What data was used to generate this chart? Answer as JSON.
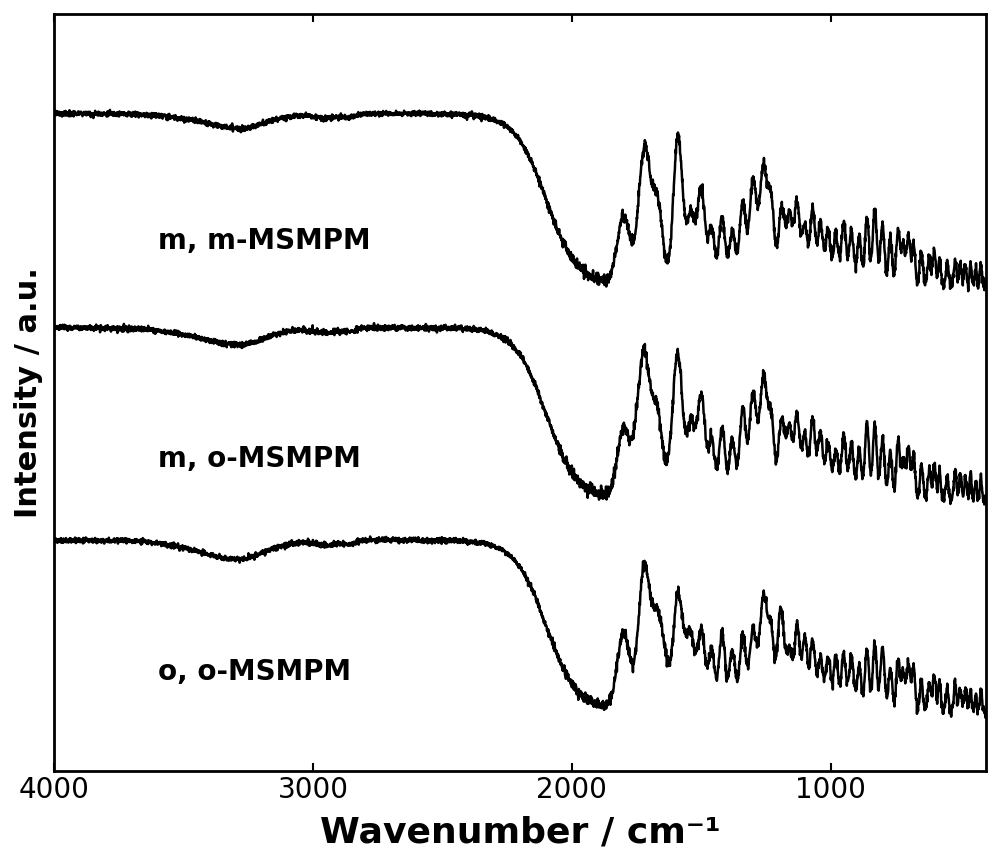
{
  "xlabel": "Wavenumber / cm⁻¹",
  "ylabel": "Intensity / a.u.",
  "xlim": [
    4000,
    400
  ],
  "labels": [
    "m, m-MSMPM",
    "m, o-MSMPM",
    "o, o-MSMPM"
  ],
  "offsets": [
    2.0,
    1.0,
    0.0
  ],
  "xticks": [
    4000,
    3000,
    2000,
    1000
  ],
  "xlabel_fontsize": 26,
  "ylabel_fontsize": 22,
  "tick_fontsize": 20,
  "label_fontsize": 20,
  "linewidth": 1.8,
  "background_color": "#ffffff",
  "line_color": "#000000",
  "figsize": [
    10,
    8.63
  ],
  "dpi": 100
}
